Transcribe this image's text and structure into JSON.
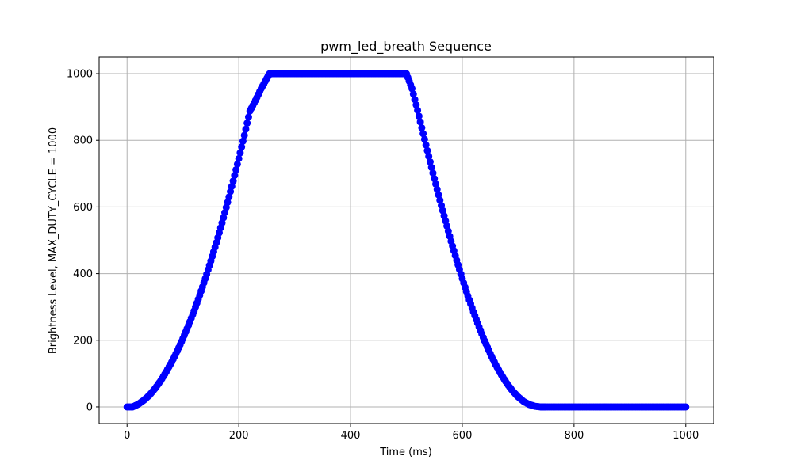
{
  "chart_data": {
    "type": "scatter",
    "title": "pwm_led_breath Sequence",
    "xlabel": "Time (ms)",
    "ylabel": "Brightness Level, MAX_DUTY_CYCLE = 1000",
    "xlim": [
      -50,
      1050
    ],
    "ylim": [
      -50,
      1050
    ],
    "xticks": [
      0,
      200,
      400,
      600,
      800,
      1000
    ],
    "yticks": [
      0,
      200,
      400,
      600,
      800,
      1000
    ],
    "grid": true,
    "series": [
      {
        "color": "#0000ff",
        "x": [
          0,
          10,
          20,
          30,
          40,
          50,
          60,
          70,
          80,
          90,
          100,
          110,
          120,
          130,
          140,
          150,
          160,
          170,
          180,
          190,
          200,
          210,
          220,
          230,
          240,
          250,
          255,
          260,
          270,
          280,
          290,
          300,
          310,
          320,
          330,
          340,
          350,
          360,
          370,
          380,
          390,
          400,
          410,
          420,
          430,
          440,
          450,
          460,
          470,
          480,
          490,
          500,
          510,
          520,
          530,
          540,
          550,
          560,
          570,
          580,
          590,
          600,
          610,
          620,
          630,
          640,
          650,
          660,
          670,
          680,
          690,
          700,
          710,
          720,
          730,
          740,
          745,
          750,
          760,
          770,
          780,
          790,
          800,
          810,
          820,
          830,
          840,
          850,
          860,
          870,
          880,
          890,
          900,
          910,
          920,
          930,
          940,
          950,
          960,
          970,
          980,
          990,
          1000
        ],
        "y": [
          0,
          0,
          8,
          20,
          35,
          55,
          78,
          105,
          135,
          168,
          205,
          245,
          288,
          335,
          385,
          438,
          493,
          552,
          614,
          678,
          745,
          815,
          888,
          920,
          955,
          985,
          1000,
          1000,
          1000,
          1000,
          1000,
          1000,
          1000,
          1000,
          1000,
          1000,
          1000,
          1000,
          1000,
          1000,
          1000,
          1000,
          1000,
          1000,
          1000,
          1000,
          1000,
          1000,
          1000,
          1000,
          1000,
          1000,
          955,
          890,
          820,
          752,
          685,
          620,
          558,
          497,
          440,
          385,
          333,
          285,
          240,
          198,
          160,
          126,
          96,
          70,
          48,
          30,
          16,
          7,
          2,
          0,
          0,
          0,
          0,
          0,
          0,
          0,
          0,
          0,
          0,
          0,
          0,
          0,
          0,
          0,
          0,
          0,
          0,
          0,
          0,
          0,
          0,
          0,
          0,
          0,
          0,
          0,
          0
        ]
      }
    ]
  }
}
